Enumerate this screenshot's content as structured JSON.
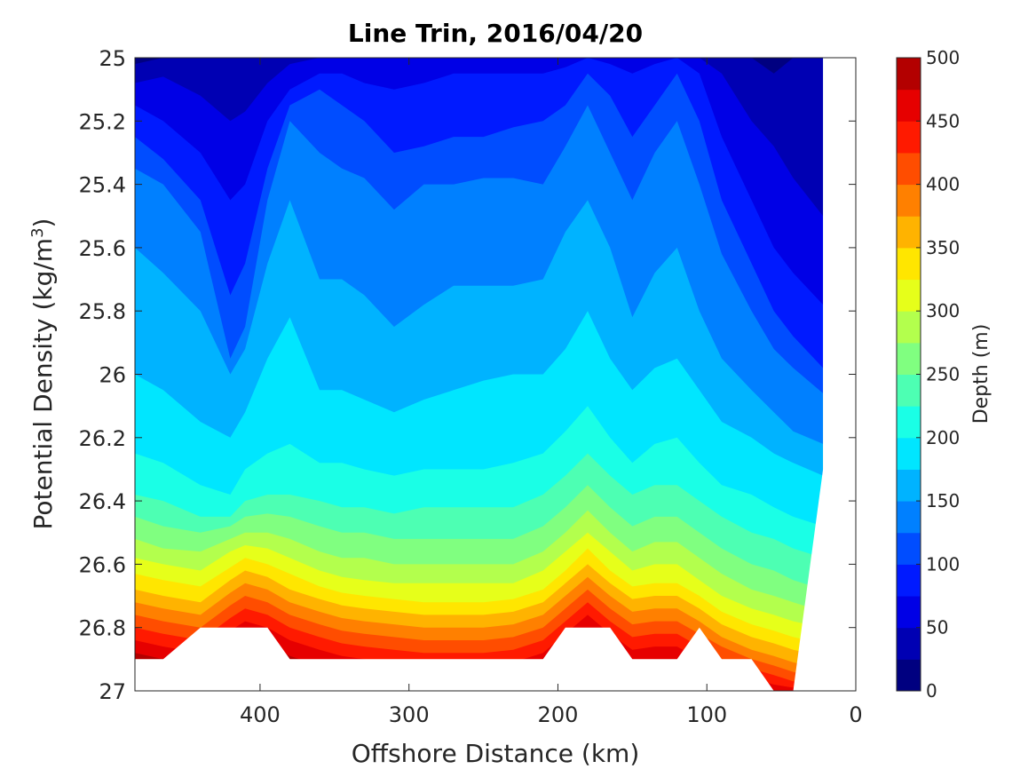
{
  "chart_data": {
    "type": "heatmap",
    "subtype": "filled-contour",
    "title": "Line Trin, 2016/04/20",
    "xlabel": "Offshore Distance (km)",
    "ylabel": {
      "prefix": "Potential Density (kg/m",
      "sup": "3",
      "suffix": ")"
    },
    "x_reversed": true,
    "xlim": [
      484,
      0
    ],
    "ylim": [
      25,
      27
    ],
    "y_reversed": true,
    "x_ticks": [
      400,
      300,
      200,
      100,
      0
    ],
    "y_ticks": [
      25,
      25.2,
      25.4,
      25.6,
      25.8,
      26,
      26.2,
      26.4,
      26.6,
      26.8,
      27
    ],
    "y_tick_labels": [
      "25",
      "25.2",
      "25.4",
      "25.6",
      "25.8",
      "26",
      "26.2",
      "26.4",
      "26.6",
      "26.8",
      "27"
    ],
    "colorbar": {
      "label": "Depth (m)",
      "min": 0,
      "max": 500,
      "step": 25,
      "ticks": [
        0,
        50,
        100,
        150,
        200,
        250,
        300,
        350,
        400,
        450,
        500
      ],
      "colors": [
        "#000080",
        "#0000b3",
        "#0000e6",
        "#001aff",
        "#004dff",
        "#0080ff",
        "#00b3ff",
        "#00e6ff",
        "#1affe6",
        "#4dffb3",
        "#80ff80",
        "#b3ff4d",
        "#e6ff1a",
        "#ffe600",
        "#ffb300",
        "#ff8000",
        "#ff4d00",
        "#ff1a00",
        "#e60000",
        "#b30000"
      ]
    },
    "x": [
      484,
      465,
      440,
      420,
      410,
      395,
      380,
      360,
      345,
      330,
      310,
      290,
      270,
      250,
      230,
      210,
      195,
      180,
      165,
      150,
      135,
      120,
      105,
      90,
      70,
      55,
      42,
      22
    ],
    "contour_levels": [
      25,
      50,
      75,
      100,
      125,
      150,
      175,
      200,
      225,
      250,
      275,
      300,
      325,
      350,
      375,
      400,
      425,
      450,
      475
    ],
    "isobath_density": [
      [
        25.02,
        25.0,
        25.0,
        25.0,
        25.0,
        25.0,
        25.0,
        25.0,
        25.0,
        25.0,
        25.0,
        25.0,
        25.0,
        25.0,
        25.0,
        25.0,
        25.0,
        25.0,
        25.0,
        25.0,
        25.0,
        25.0,
        25.0,
        25.0,
        25.0,
        25.05,
        25.0,
        25.0
      ],
      [
        25.08,
        25.06,
        25.12,
        25.2,
        25.17,
        25.08,
        25.02,
        25.0,
        25.0,
        25.0,
        25.0,
        25.0,
        25.0,
        25.0,
        25.0,
        25.0,
        25.0,
        25.0,
        25.0,
        25.0,
        25.0,
        25.0,
        25.0,
        25.05,
        25.2,
        25.28,
        25.38,
        25.5
      ],
      [
        25.15,
        25.2,
        25.3,
        25.45,
        25.4,
        25.2,
        25.1,
        25.05,
        25.05,
        25.08,
        25.1,
        25.08,
        25.05,
        25.05,
        25.05,
        25.05,
        25.03,
        25.0,
        25.02,
        25.05,
        25.02,
        25.0,
        25.05,
        25.25,
        25.45,
        25.6,
        25.68,
        25.78
      ],
      [
        25.25,
        25.32,
        25.45,
        25.75,
        25.65,
        25.35,
        25.15,
        25.1,
        25.15,
        25.2,
        25.3,
        25.28,
        25.25,
        25.25,
        25.22,
        25.2,
        25.15,
        25.05,
        25.12,
        25.25,
        25.15,
        25.05,
        25.2,
        25.45,
        25.65,
        25.8,
        25.88,
        25.98
      ],
      [
        25.35,
        25.4,
        25.55,
        25.95,
        25.85,
        25.45,
        25.2,
        25.3,
        25.35,
        25.38,
        25.48,
        25.4,
        25.4,
        25.38,
        25.38,
        25.4,
        25.28,
        25.15,
        25.3,
        25.45,
        25.3,
        25.2,
        25.4,
        25.62,
        25.8,
        25.92,
        25.98,
        26.06
      ],
      [
        25.6,
        25.68,
        25.8,
        26.0,
        25.92,
        25.65,
        25.45,
        25.7,
        25.7,
        25.75,
        25.85,
        25.78,
        25.72,
        25.72,
        25.72,
        25.7,
        25.55,
        25.45,
        25.6,
        25.82,
        25.68,
        25.6,
        25.8,
        25.95,
        26.05,
        26.12,
        26.18,
        26.22
      ],
      [
        26.0,
        26.05,
        26.15,
        26.2,
        26.12,
        25.95,
        25.82,
        26.05,
        26.05,
        26.08,
        26.12,
        26.08,
        26.05,
        26.02,
        26.0,
        26.0,
        25.92,
        25.8,
        25.95,
        26.05,
        25.98,
        25.95,
        26.05,
        26.15,
        26.2,
        26.25,
        26.28,
        26.32
      ],
      [
        26.25,
        26.28,
        26.35,
        26.38,
        26.3,
        26.25,
        26.22,
        26.28,
        26.28,
        26.3,
        26.32,
        26.3,
        26.3,
        26.3,
        26.28,
        26.25,
        26.18,
        26.1,
        26.2,
        26.28,
        26.22,
        26.2,
        26.28,
        26.35,
        26.38,
        26.42,
        26.45,
        26.48
      ],
      [
        26.38,
        26.4,
        26.45,
        26.45,
        26.4,
        26.38,
        26.38,
        26.4,
        26.42,
        26.42,
        26.44,
        26.42,
        26.42,
        26.42,
        26.42,
        26.38,
        26.32,
        26.25,
        26.32,
        26.38,
        26.35,
        26.35,
        26.4,
        26.45,
        26.5,
        26.52,
        26.55,
        26.58
      ],
      [
        26.45,
        26.48,
        26.5,
        26.48,
        26.45,
        26.44,
        26.45,
        26.48,
        26.5,
        26.5,
        26.52,
        26.52,
        26.52,
        26.52,
        26.52,
        26.48,
        26.42,
        26.35,
        26.42,
        26.48,
        26.45,
        26.45,
        26.5,
        26.55,
        26.6,
        26.62,
        26.65,
        26.68
      ],
      [
        26.52,
        26.55,
        26.56,
        26.52,
        26.5,
        26.5,
        26.52,
        26.56,
        26.58,
        26.58,
        26.6,
        26.6,
        26.6,
        26.6,
        26.6,
        26.56,
        26.5,
        26.43,
        26.5,
        26.56,
        26.53,
        26.53,
        26.58,
        26.63,
        26.68,
        26.7,
        26.72,
        26.75
      ],
      [
        26.58,
        26.6,
        26.62,
        26.56,
        26.54,
        26.55,
        26.58,
        26.62,
        26.64,
        26.65,
        26.66,
        26.66,
        26.66,
        26.66,
        26.66,
        26.62,
        26.56,
        26.5,
        26.56,
        26.62,
        26.6,
        26.6,
        26.65,
        26.7,
        26.74,
        26.76,
        26.78,
        26.8
      ],
      [
        26.63,
        26.65,
        26.67,
        26.61,
        26.58,
        26.6,
        26.63,
        26.67,
        26.69,
        26.7,
        26.71,
        26.72,
        26.72,
        26.72,
        26.71,
        26.68,
        26.62,
        26.55,
        26.62,
        26.67,
        26.66,
        26.66,
        26.7,
        26.75,
        26.79,
        26.81,
        26.83,
        26.85
      ],
      [
        26.68,
        26.7,
        26.72,
        26.65,
        26.62,
        26.64,
        26.68,
        26.71,
        26.73,
        26.74,
        26.75,
        26.76,
        26.76,
        26.76,
        26.75,
        26.72,
        26.66,
        26.6,
        26.66,
        26.71,
        26.7,
        26.7,
        26.74,
        26.79,
        26.83,
        26.85,
        26.87,
        26.89
      ],
      [
        26.72,
        26.74,
        26.76,
        26.69,
        26.66,
        26.68,
        26.72,
        26.75,
        26.77,
        26.78,
        26.79,
        26.8,
        26.8,
        26.8,
        26.79,
        26.76,
        26.7,
        26.64,
        26.7,
        26.75,
        26.74,
        26.74,
        26.78,
        26.83,
        26.87,
        26.89,
        26.91,
        26.93
      ],
      [
        26.76,
        26.78,
        26.8,
        26.73,
        26.7,
        26.72,
        26.76,
        26.79,
        26.81,
        26.82,
        26.83,
        26.84,
        26.84,
        26.84,
        26.83,
        26.8,
        26.74,
        26.68,
        26.74,
        26.79,
        26.78,
        26.78,
        26.82,
        26.86,
        26.9,
        26.92,
        26.94,
        26.96
      ],
      [
        26.8,
        26.82,
        26.84,
        26.77,
        26.74,
        26.76,
        26.8,
        26.83,
        26.85,
        26.86,
        26.87,
        26.88,
        26.88,
        26.88,
        26.87,
        26.84,
        26.78,
        26.72,
        26.78,
        26.83,
        26.82,
        26.82,
        26.86,
        26.9,
        26.93,
        26.95,
        26.97,
        26.99
      ],
      [
        26.84,
        26.86,
        26.88,
        26.81,
        26.78,
        26.8,
        26.84,
        26.87,
        26.89,
        26.9,
        26.91,
        26.92,
        26.92,
        26.92,
        26.91,
        26.88,
        26.82,
        26.76,
        26.82,
        26.87,
        26.86,
        26.86,
        26.9,
        26.93,
        26.96,
        26.98,
        26.99,
        27.0
      ],
      [
        26.88,
        26.9,
        26.92,
        26.86,
        26.83,
        26.85,
        26.89,
        26.92,
        26.93,
        26.94,
        26.95,
        26.96,
        26.96,
        26.96,
        26.95,
        26.92,
        26.87,
        26.81,
        26.87,
        26.91,
        26.9,
        26.9,
        26.94,
        26.97,
        26.99,
        27.0,
        27.0,
        27.0
      ]
    ],
    "nodata_regions": [
      {
        "x": [
          484,
          465,
          440,
          420,
          410,
          395,
          380,
          360,
          345,
          330,
          310,
          290,
          270,
          250,
          230,
          210,
          195,
          180,
          165,
          150,
          135,
          120,
          105,
          90,
          70,
          55,
          42,
          22
        ],
        "y_min": [
          26.9,
          26.9,
          26.8,
          26.8,
          26.8,
          26.8,
          26.9,
          26.9,
          26.9,
          26.9,
          26.9,
          26.9,
          26.9,
          26.9,
          26.9,
          26.9,
          26.8,
          26.8,
          26.8,
          26.9,
          26.9,
          26.9,
          26.8,
          26.9,
          26.9,
          27.0,
          27.0,
          26.3
        ]
      }
    ]
  }
}
